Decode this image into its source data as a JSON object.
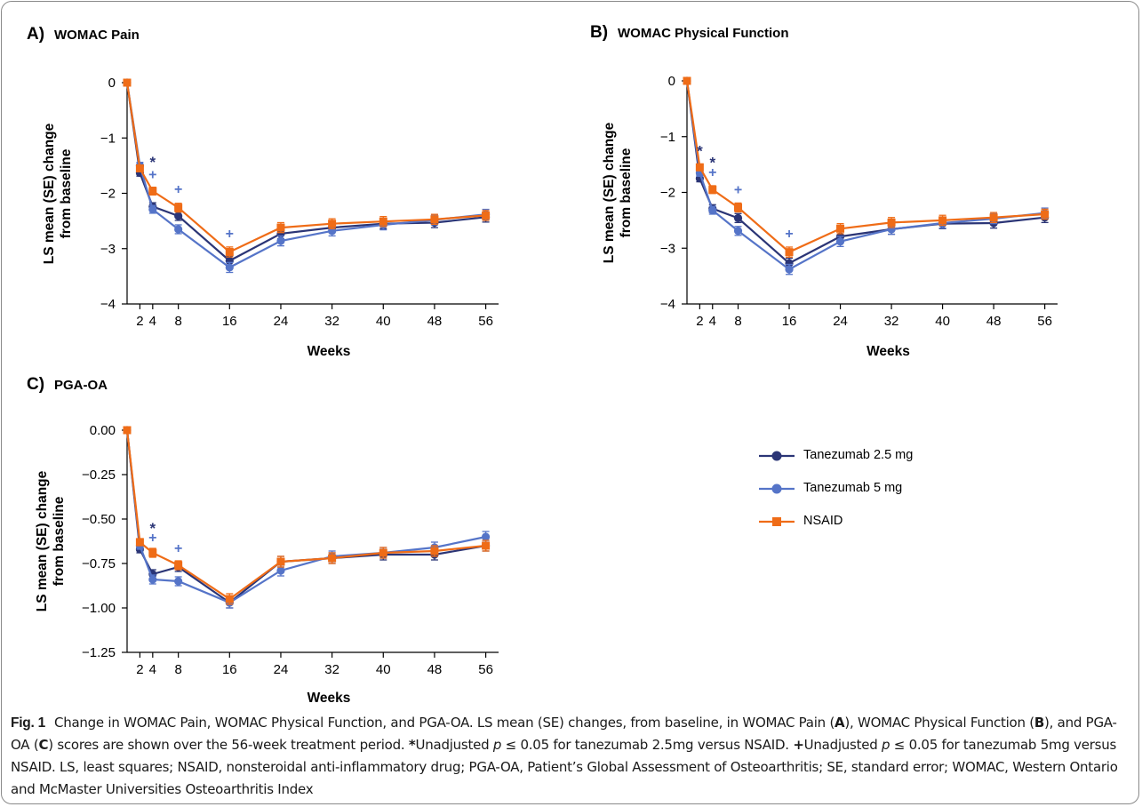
{
  "colors": {
    "tanezumab_2_5": "#2b3576",
    "tanezumab_5": "#5574c8",
    "nsaid": "#ef6c17"
  },
  "legend": {
    "items": [
      {
        "label": "Tanezumab 2.5 mg",
        "color": "#2b3576",
        "marker": "circle"
      },
      {
        "label": "Tanezumab 5 mg",
        "color": "#5574c8",
        "marker": "circle"
      },
      {
        "label": "NSAID",
        "color": "#ef6c17",
        "marker": "square"
      }
    ]
  },
  "panels": {
    "a": {
      "letter": "A)",
      "title": "WOMAC Pain"
    },
    "b": {
      "letter": "B)",
      "title": "WOMAC Physical Function"
    },
    "c": {
      "letter": "C)",
      "title": "PGA-OA"
    }
  },
  "caption": {
    "fig_label": "Fig. 1",
    "line1": "Change in WOMAC Pain, WOMAC Physical Function, and PGA-OA. LS mean (SE) changes, from baseline, in WOMAC Pain (",
    "a": "A",
    "mid1": "), WOMAC Physical Function (",
    "b": "B",
    "mid2": "), and PGA-OA (",
    "c": "C",
    "mid3": ") scores are shown over the 56-week treatment period. ",
    "star": "*",
    "fn1a": "Unadjusted ",
    "p1": "p",
    "fn1b": " ≤ 0.05 for tanezumab 2.5mg versus NSAID. ",
    "plus": "+",
    "fn2a": "Unadjusted ",
    "p2": "p",
    "fn2b": " ≤ 0.05 for tanezumab 5mg versus NSAID. LS, least squares; NSAID, nonsteroidal anti-inflammatory drug; PGA-OA, Patient’s Global Assessment of Osteoarthritis; SE, standard error; WOMAC, Western Ontario and McMaster Universities Osteoarthritis Index"
  },
  "chart_data": [
    {
      "type": "line",
      "panel": "A) WOMAC Pain",
      "xlabel": "Weeks",
      "ylabel": "LS mean (SE) change from baseline",
      "x": [
        0,
        2,
        4,
        8,
        16,
        24,
        32,
        40,
        48,
        56
      ],
      "xticks": [
        2,
        4,
        8,
        16,
        24,
        32,
        40,
        48,
        56
      ],
      "xlim": [
        0,
        58
      ],
      "yticks": [
        0,
        -1,
        -2,
        -3,
        -4
      ],
      "ytick_labels": [
        "0",
        "−1",
        "−2",
        "−3",
        "−4"
      ],
      "ylim": [
        -4,
        0
      ],
      "series": [
        {
          "name": "Tanezumab 2.5 mg",
          "values": [
            0,
            -1.63,
            -2.24,
            -2.41,
            -3.22,
            -2.73,
            -2.62,
            -2.55,
            -2.53,
            -2.43
          ],
          "se": [
            0,
            0.06,
            0.07,
            0.08,
            0.09,
            0.09,
            0.09,
            0.09,
            0.09,
            0.09
          ]
        },
        {
          "name": "Tanezumab 5 mg",
          "values": [
            0,
            -1.5,
            -2.29,
            -2.65,
            -3.34,
            -2.86,
            -2.68,
            -2.57,
            -2.48,
            -2.38
          ],
          "se": [
            0,
            0.06,
            0.07,
            0.08,
            0.09,
            0.09,
            0.09,
            0.09,
            0.09,
            0.09
          ]
        },
        {
          "name": "NSAID",
          "values": [
            0,
            -1.55,
            -1.96,
            -2.26,
            -3.06,
            -2.62,
            -2.55,
            -2.51,
            -2.47,
            -2.4
          ],
          "se": [
            0,
            0.06,
            0.07,
            0.08,
            0.09,
            0.09,
            0.09,
            0.09,
            0.09,
            0.09
          ]
        }
      ],
      "annotations": [
        {
          "symbol": "*",
          "x": 4,
          "y": -1.53
        },
        {
          "symbol": "+",
          "x": 4,
          "y": -1.74
        },
        {
          "symbol": "+",
          "x": 8,
          "y": -2.01
        },
        {
          "symbol": "+",
          "x": 16,
          "y": -2.81
        }
      ]
    },
    {
      "type": "line",
      "panel": "B) WOMAC Physical Function",
      "xlabel": "Weeks",
      "ylabel": "LS mean (SE) change from baseline",
      "x": [
        0,
        2,
        4,
        8,
        16,
        24,
        32,
        40,
        48,
        56
      ],
      "xticks": [
        2,
        4,
        8,
        16,
        24,
        32,
        40,
        48,
        56
      ],
      "xlim": [
        0,
        58
      ],
      "yticks": [
        0,
        -1,
        -2,
        -3,
        -4
      ],
      "ytick_labels": [
        "0",
        "−1",
        "−2",
        "−3",
        "−4"
      ],
      "ylim": [
        -4,
        0
      ],
      "series": [
        {
          "name": "Tanezumab 2.5 mg",
          "values": [
            0,
            -1.75,
            -2.29,
            -2.46,
            -3.27,
            -2.79,
            -2.66,
            -2.56,
            -2.55,
            -2.45
          ],
          "se": [
            0,
            0.06,
            0.07,
            0.08,
            0.09,
            0.09,
            0.09,
            0.09,
            0.09,
            0.09
          ]
        },
        {
          "name": "Tanezumab 5 mg",
          "values": [
            0,
            -1.65,
            -2.32,
            -2.69,
            -3.38,
            -2.88,
            -2.66,
            -2.55,
            -2.47,
            -2.37
          ],
          "se": [
            0,
            0.06,
            0.07,
            0.08,
            0.09,
            0.09,
            0.09,
            0.09,
            0.09,
            0.09
          ]
        },
        {
          "name": "NSAID",
          "values": [
            0,
            -1.55,
            -1.95,
            -2.27,
            -3.07,
            -2.65,
            -2.54,
            -2.5,
            -2.45,
            -2.39
          ],
          "se": [
            0,
            0.06,
            0.07,
            0.08,
            0.09,
            0.09,
            0.09,
            0.09,
            0.09,
            0.09
          ]
        }
      ],
      "annotations": [
        {
          "symbol": "*",
          "x": 2,
          "y": -1.35
        },
        {
          "symbol": "*",
          "x": 4,
          "y": -1.55
        },
        {
          "symbol": "+",
          "x": 4,
          "y": -1.72
        },
        {
          "symbol": "+",
          "x": 8,
          "y": -2.03
        },
        {
          "symbol": "+",
          "x": 16,
          "y": -2.82
        }
      ]
    },
    {
      "type": "line",
      "panel": "C) PGA-OA",
      "xlabel": "Weeks",
      "ylabel": "LS mean (SE) change from baseline",
      "x": [
        0,
        2,
        4,
        8,
        16,
        24,
        32,
        40,
        48,
        56
      ],
      "xticks": [
        2,
        4,
        8,
        16,
        24,
        32,
        40,
        48,
        56
      ],
      "xlim": [
        0,
        58
      ],
      "yticks": [
        0,
        -0.25,
        -0.5,
        -0.75,
        -1,
        -1.25
      ],
      "ytick_labels": [
        "0.00",
        "−0.25",
        "−0.50",
        "−0.75",
        "−1.00",
        "−1.25"
      ],
      "ylim": [
        -1.25,
        0
      ],
      "series": [
        {
          "name": "Tanezumab 2.5 mg",
          "values": [
            0,
            -0.67,
            -0.81,
            -0.77,
            -0.97,
            -0.74,
            -0.72,
            -0.7,
            -0.7,
            -0.65
          ],
          "se": [
            0,
            0.02,
            0.025,
            0.025,
            0.03,
            0.03,
            0.03,
            0.03,
            0.03,
            0.03
          ]
        },
        {
          "name": "Tanezumab 5 mg",
          "values": [
            0,
            -0.65,
            -0.84,
            -0.85,
            -0.97,
            -0.79,
            -0.71,
            -0.69,
            -0.66,
            -0.6
          ],
          "se": [
            0,
            0.02,
            0.025,
            0.025,
            0.03,
            0.03,
            0.03,
            0.03,
            0.03,
            0.03
          ]
        },
        {
          "name": "NSAID",
          "values": [
            0,
            -0.63,
            -0.69,
            -0.76,
            -0.95,
            -0.74,
            -0.72,
            -0.69,
            -0.68,
            -0.65
          ],
          "se": [
            0,
            0.02,
            0.025,
            0.025,
            0.03,
            0.03,
            0.03,
            0.03,
            0.03,
            0.03
          ]
        }
      ],
      "annotations": [
        {
          "symbol": "*",
          "x": 4,
          "y": -0.58
        },
        {
          "symbol": "+",
          "x": 4,
          "y": -0.63
        },
        {
          "symbol": "+",
          "x": 8,
          "y": -0.69
        }
      ]
    }
  ]
}
